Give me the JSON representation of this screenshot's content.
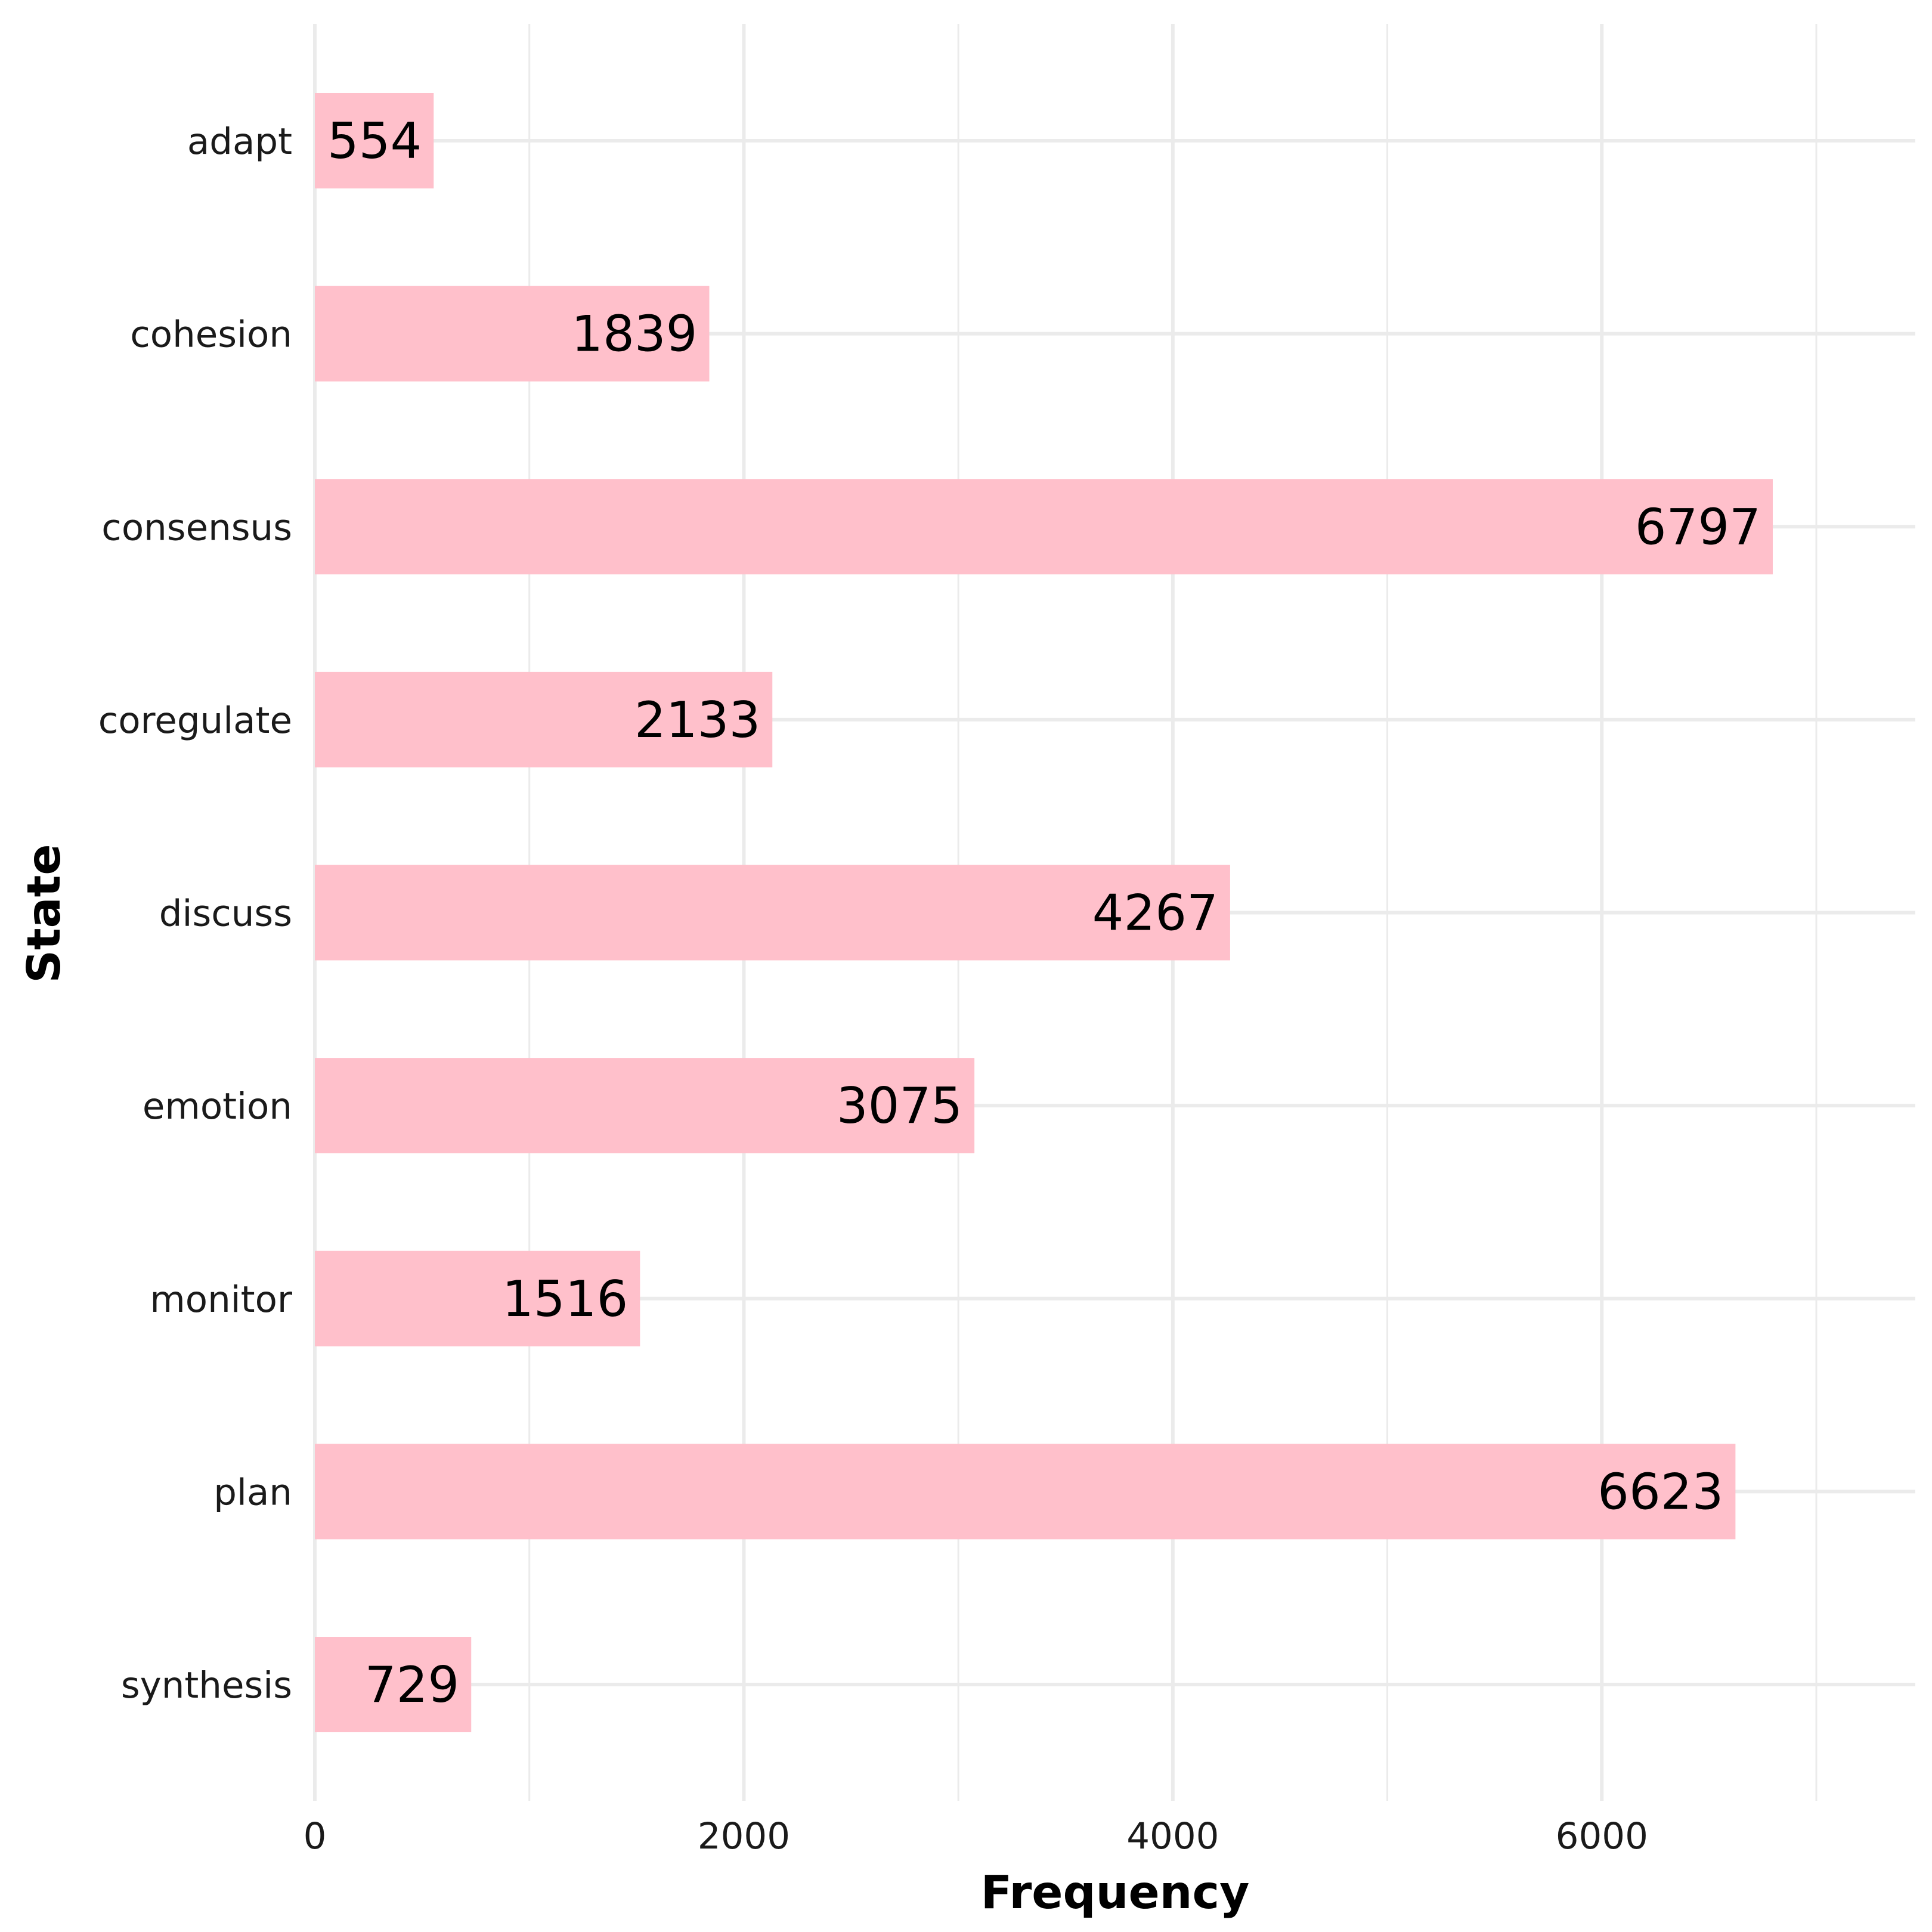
{
  "chart_data": {
    "type": "bar",
    "orientation": "horizontal",
    "categories": [
      "adapt",
      "cohesion",
      "consensus",
      "coregulate",
      "discuss",
      "emotion",
      "monitor",
      "plan",
      "synthesis"
    ],
    "values": [
      554,
      1839,
      6797,
      2133,
      4267,
      3075,
      1516,
      6623,
      729
    ],
    "data_labels": [
      "554",
      "1839",
      "6797",
      "2133",
      "4267",
      "3075",
      "1516",
      "6623",
      "729"
    ],
    "xlabel": "Frequency",
    "ylabel": "State",
    "xlim": [
      0,
      7500
    ],
    "x_ticks": [
      0,
      2000,
      4000,
      6000
    ],
    "x_tick_labels": [
      "0",
      "2000",
      "4000",
      "6000"
    ],
    "x_minor_gridlines": [
      1000,
      3000,
      5000,
      7000
    ],
    "grid": true,
    "legend": "none",
    "colors": {
      "bar": "#ffc0cb",
      "grid": "#ebebeb",
      "text": "#1a1a1a",
      "label": "#000000"
    }
  }
}
